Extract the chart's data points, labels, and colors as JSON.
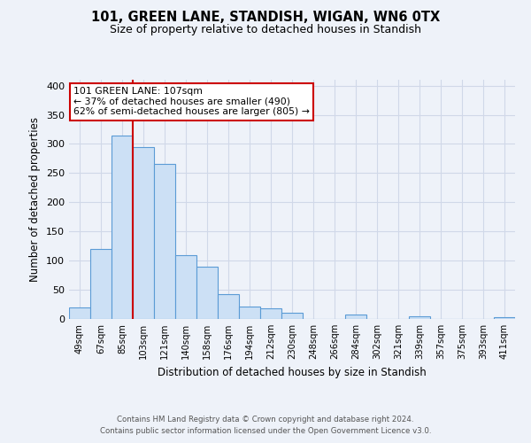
{
  "title": "101, GREEN LANE, STANDISH, WIGAN, WN6 0TX",
  "subtitle": "Size of property relative to detached houses in Standish",
  "xlabel": "Distribution of detached houses by size in Standish",
  "ylabel": "Number of detached properties",
  "footnote1": "Contains HM Land Registry data © Crown copyright and database right 2024.",
  "footnote2": "Contains public sector information licensed under the Open Government Licence v3.0.",
  "bin_labels": [
    "49sqm",
    "67sqm",
    "85sqm",
    "103sqm",
    "121sqm",
    "140sqm",
    "158sqm",
    "176sqm",
    "194sqm",
    "212sqm",
    "230sqm",
    "248sqm",
    "266sqm",
    "284sqm",
    "302sqm",
    "321sqm",
    "339sqm",
    "357sqm",
    "375sqm",
    "393sqm",
    "411sqm"
  ],
  "bar_values": [
    20,
    120,
    315,
    295,
    265,
    110,
    90,
    43,
    22,
    18,
    10,
    0,
    0,
    8,
    0,
    0,
    5,
    0,
    0,
    0,
    3
  ],
  "bar_color": "#cce0f5",
  "bar_edge_color": "#5b9bd5",
  "background_color": "#eef2f9",
  "grid_color": "#d0d8e8",
  "marker_bin_index": 3,
  "marker_label": "101 GREEN LANE: 107sqm",
  "annotation_line1": "← 37% of detached houses are smaller (490)",
  "annotation_line2": "62% of semi-detached houses are larger (805) →",
  "annotation_box_color": "#ffffff",
  "annotation_border_color": "#cc0000",
  "marker_line_color": "#cc0000",
  "ylim": [
    0,
    410
  ],
  "yticks": [
    0,
    50,
    100,
    150,
    200,
    250,
    300,
    350,
    400
  ]
}
